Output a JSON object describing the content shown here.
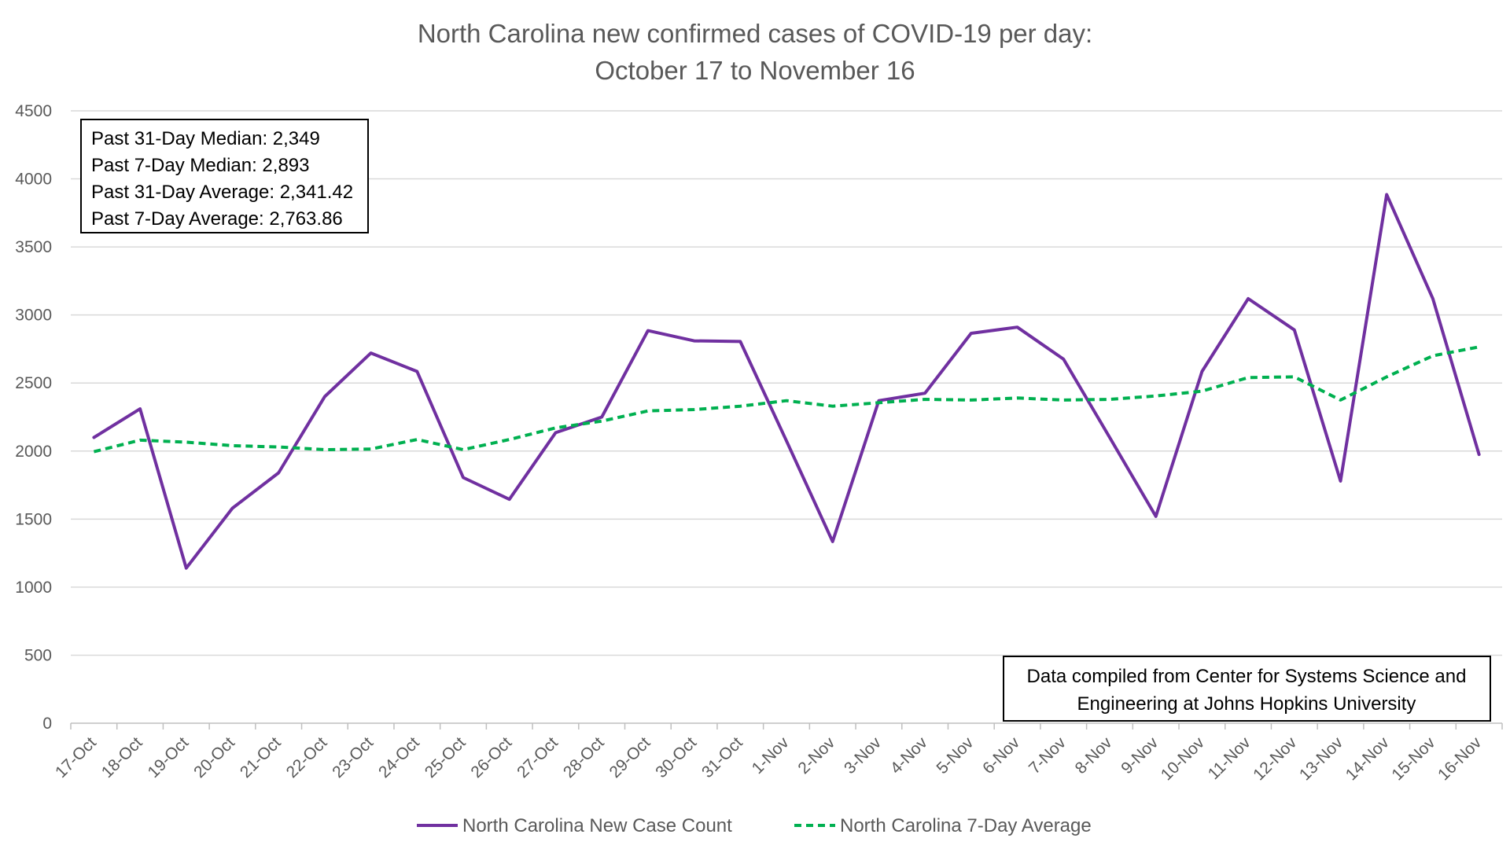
{
  "chart_data": {
    "type": "line",
    "title": [
      "North Carolina new confirmed cases of COVID-19 per day:",
      "October 17 to November 16"
    ],
    "xlabel": "",
    "ylabel": "",
    "ylim": [
      0,
      4500
    ],
    "yticks": [
      "0",
      "500",
      "1000",
      "1500",
      "2000",
      "2500",
      "3000",
      "3500",
      "4000",
      "4500"
    ],
    "grid": true,
    "legend_position": "bottom",
    "categories": [
      "17-Oct",
      "18-Oct",
      "19-Oct",
      "20-Oct",
      "21-Oct",
      "22-Oct",
      "23-Oct",
      "24-Oct",
      "25-Oct",
      "26-Oct",
      "27-Oct",
      "28-Oct",
      "29-Oct",
      "30-Oct",
      "31-Oct",
      "1-Nov",
      "2-Nov",
      "3-Nov",
      "4-Nov",
      "5-Nov",
      "6-Nov",
      "7-Nov",
      "8-Nov",
      "9-Nov",
      "10-Nov",
      "11-Nov",
      "12-Nov",
      "13-Nov",
      "14-Nov",
      "15-Nov",
      "16-Nov"
    ],
    "series": [
      {
        "name": "North Carolina New Case Count",
        "color": "#7030a0",
        "style": "solid",
        "values": [
          2100,
          2310,
          1140,
          1580,
          1840,
          2400,
          2720,
          2585,
          1805,
          1645,
          2135,
          2250,
          2885,
          2810,
          2805,
          2075,
          1335,
          2370,
          2425,
          2865,
          2910,
          2675,
          2100,
          1520,
          2585,
          3120,
          2890,
          1780,
          3885,
          3120,
          1975
        ]
      },
      {
        "name": "North Carolina 7-Day Average",
        "color": "#00b050",
        "style": "dashed",
        "values": [
          1995,
          2080,
          2065,
          2040,
          2030,
          2010,
          2015,
          2085,
          2010,
          2085,
          2170,
          2220,
          2295,
          2305,
          2330,
          2370,
          2330,
          2355,
          2380,
          2375,
          2390,
          2375,
          2380,
          2405,
          2440,
          2540,
          2545,
          2375,
          2545,
          2700,
          2765
        ]
      }
    ],
    "annotations": {
      "stats_box": [
        "Past 31-Day Median: 2,349",
        "Past 7-Day Median: 2,893",
        "Past 31-Day Average: 2,341.42",
        "Past 7-Day Average: 2,763.86"
      ],
      "source_box": [
        "Data compiled from Center for Systems Science and",
        "Engineering at Johns Hopkins University"
      ]
    }
  }
}
